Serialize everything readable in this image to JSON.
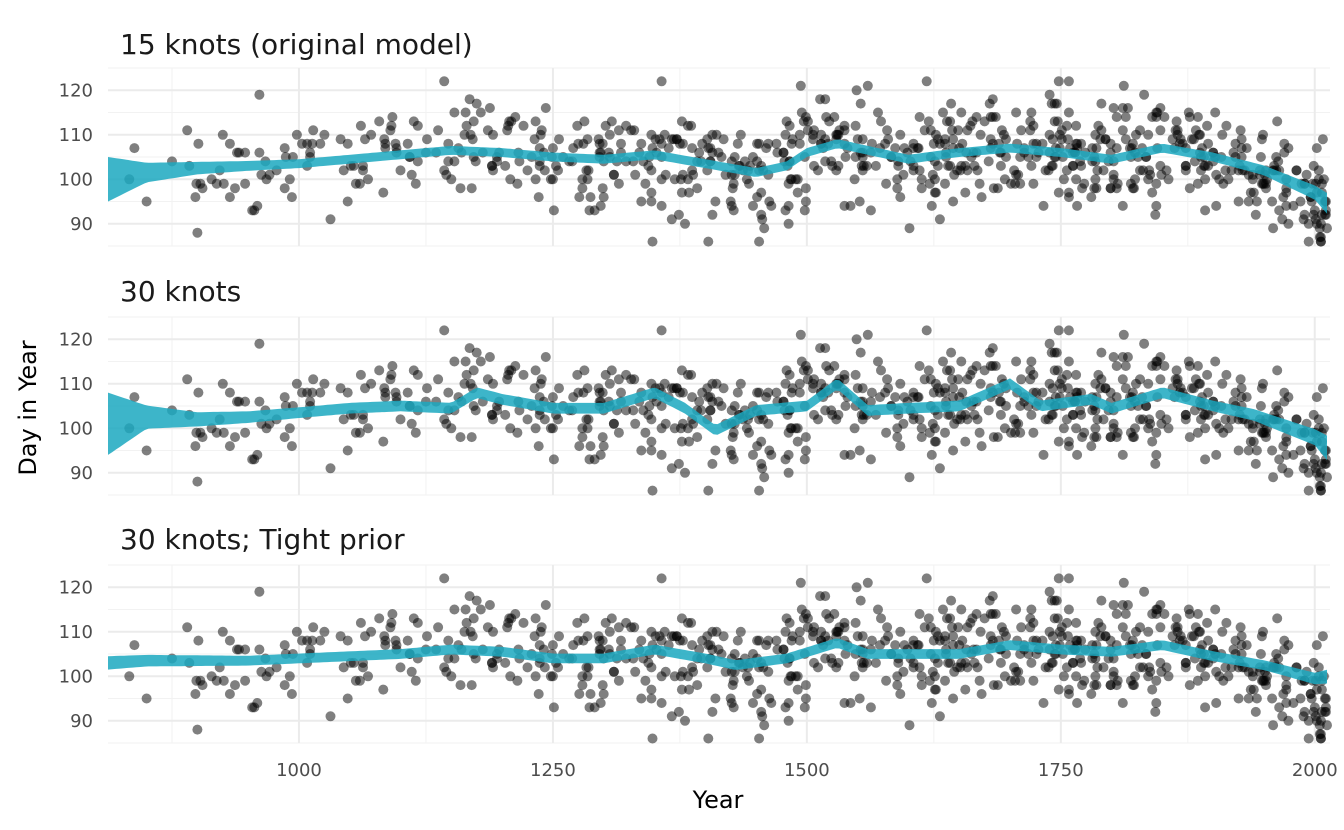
{
  "chart_data": {
    "type": "scatter",
    "xlabel": "Year",
    "ylabel": "Day in Year",
    "xlim": [
      812,
      2015
    ],
    "ylim": [
      85,
      125
    ],
    "x_ticks": [
      1000,
      1250,
      1500,
      1750,
      2000
    ],
    "x_tick_labels": [
      "1000",
      "1250",
      "1500",
      "1750",
      "2000"
    ],
    "y_ticks": [
      90,
      100,
      110,
      120
    ],
    "y_tick_labels": [
      "90",
      "100",
      "110",
      "120"
    ],
    "grid": true,
    "legend": "none",
    "point_color": "#000000",
    "point_opacity": 0.5,
    "ribbon_color": "#1ba8bf",
    "scatter_seed": 20240611,
    "scatter_n": 800,
    "panels": [
      {
        "title": "15 knots (original model)",
        "smooth": {
          "x": [
            812,
            850,
            900,
            950,
            1000,
            1050,
            1100,
            1150,
            1200,
            1250,
            1300,
            1350,
            1400,
            1450,
            1480,
            1500,
            1530,
            1550,
            1600,
            1650,
            1700,
            1750,
            1800,
            1850,
            1900,
            1950,
            2000,
            2015
          ],
          "y": [
            100,
            101.5,
            102.5,
            103,
            103.5,
            104.5,
            105.5,
            106.5,
            106,
            105,
            104.5,
            105.5,
            103.5,
            101.5,
            103,
            106,
            108,
            107,
            104.5,
            106,
            107,
            106,
            104.5,
            107,
            105,
            102,
            97,
            94
          ],
          "half_width": [
            5,
            2.2,
            1.4,
            1.1,
            1,
            1,
            1,
            1,
            1,
            1,
            1,
            1,
            1,
            1,
            1,
            1,
            1,
            1,
            1,
            1,
            1,
            1,
            1,
            1,
            1,
            1.1,
            1.6,
            2.5
          ]
        }
      },
      {
        "title": "30 knots",
        "smooth": {
          "x": [
            812,
            850,
            900,
            950,
            1000,
            1050,
            1100,
            1150,
            1175,
            1200,
            1250,
            1300,
            1350,
            1380,
            1410,
            1450,
            1500,
            1530,
            1560,
            1600,
            1650,
            1700,
            1730,
            1780,
            1800,
            1850,
            1900,
            1940,
            2000,
            2015
          ],
          "y": [
            101,
            102.5,
            102,
            102.5,
            103.5,
            104.5,
            105,
            104.5,
            108,
            106.5,
            104.5,
            104.5,
            108,
            104.5,
            99.5,
            104,
            105,
            110,
            104,
            104.5,
            105,
            110,
            105,
            106.5,
            104.5,
            108,
            105,
            103,
            98,
            95
          ],
          "half_width": [
            7,
            2.6,
            1.6,
            1.3,
            1.2,
            1.2,
            1.2,
            1.2,
            1.2,
            1.2,
            1.2,
            1.2,
            1.2,
            1.2,
            1.2,
            1.2,
            1.2,
            1.2,
            1.2,
            1.2,
            1.2,
            1.2,
            1.2,
            1.2,
            1.2,
            1.2,
            1.2,
            1.3,
            1.8,
            3
          ]
        }
      },
      {
        "title": "30 knots; Tight prior",
        "smooth": {
          "x": [
            812,
            850,
            900,
            950,
            1000,
            1050,
            1100,
            1150,
            1200,
            1250,
            1300,
            1350,
            1400,
            1430,
            1480,
            1530,
            1560,
            1600,
            1650,
            1700,
            1750,
            1800,
            1850,
            1900,
            1950,
            2000,
            2015
          ],
          "y": [
            103,
            103.5,
            103.5,
            103.5,
            104,
            104.5,
            105,
            106,
            105.5,
            104,
            104,
            106,
            104,
            102.5,
            104,
            107.5,
            105,
            105,
            105,
            107,
            106,
            105.5,
            107,
            104.5,
            102.5,
            99.5,
            100
          ],
          "half_width": [
            1.5,
            1.3,
            1.2,
            1.1,
            1.1,
            1.1,
            1.1,
            1.1,
            1.1,
            1.1,
            1.1,
            1.1,
            1.1,
            1.1,
            1.1,
            1.1,
            1.1,
            1.1,
            1.1,
            1.1,
            1.1,
            1.1,
            1.1,
            1.1,
            1.1,
            1.3,
            1.6
          ]
        }
      }
    ]
  }
}
